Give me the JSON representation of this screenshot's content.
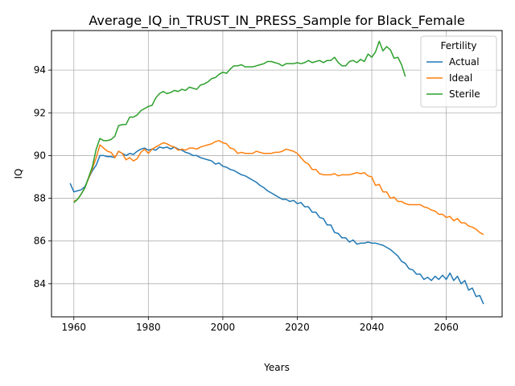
{
  "chart_data": {
    "type": "line",
    "title": "Average_IQ_in_TRUST_IN_PRESS_Sample for Black_Female",
    "xlabel": "Years",
    "ylabel": "IQ",
    "xlim": [
      1954,
      2075
    ],
    "ylim": [
      82.45,
      95.85
    ],
    "xticks": [
      1960,
      1980,
      2000,
      2020,
      2040,
      2060
    ],
    "yticks": [
      84,
      86,
      88,
      90,
      92,
      94
    ],
    "grid": true,
    "legend": {
      "title": "Fertility",
      "position": "top-right"
    },
    "series": [
      {
        "name": "Actual",
        "color": "#1f77b4",
        "points": [
          [
            1959,
            88.7
          ],
          [
            1960,
            88.3
          ],
          [
            1961,
            88.35
          ],
          [
            1962,
            88.4
          ],
          [
            1963,
            88.55
          ],
          [
            1964,
            88.95
          ],
          [
            1965,
            89.3
          ],
          [
            1966,
            89.55
          ],
          [
            1967,
            90.0
          ],
          [
            1968,
            90.0
          ],
          [
            1969,
            89.95
          ],
          [
            1970,
            89.95
          ],
          [
            1971,
            89.9
          ],
          [
            1972,
            90.2
          ],
          [
            1973,
            90.1
          ],
          [
            1974,
            90.0
          ],
          [
            1975,
            90.1
          ],
          [
            1976,
            90.05
          ],
          [
            1977,
            90.2
          ],
          [
            1978,
            90.3
          ],
          [
            1979,
            90.35
          ],
          [
            1980,
            90.25
          ],
          [
            1981,
            90.3
          ],
          [
            1982,
            90.25
          ],
          [
            1983,
            90.4
          ],
          [
            1984,
            90.35
          ],
          [
            1985,
            90.4
          ],
          [
            1986,
            90.3
          ],
          [
            1987,
            90.4
          ],
          [
            1988,
            90.3
          ],
          [
            1989,
            90.25
          ],
          [
            1990,
            90.15
          ],
          [
            1991,
            90.1
          ],
          [
            1992,
            90.0
          ],
          [
            1993,
            90.0
          ],
          [
            1994,
            89.9
          ],
          [
            1995,
            89.85
          ],
          [
            1996,
            89.8
          ],
          [
            1997,
            89.75
          ],
          [
            1998,
            89.6
          ],
          [
            1999,
            89.65
          ],
          [
            2000,
            89.5
          ],
          [
            2001,
            89.45
          ],
          [
            2002,
            89.35
          ],
          [
            2003,
            89.3
          ],
          [
            2004,
            89.2
          ],
          [
            2005,
            89.1
          ],
          [
            2006,
            89.05
          ],
          [
            2007,
            88.95
          ],
          [
            2008,
            88.85
          ],
          [
            2009,
            88.75
          ],
          [
            2010,
            88.6
          ],
          [
            2011,
            88.5
          ],
          [
            2012,
            88.35
          ],
          [
            2013,
            88.25
          ],
          [
            2014,
            88.15
          ],
          [
            2015,
            88.05
          ],
          [
            2016,
            87.95
          ],
          [
            2017,
            87.95
          ],
          [
            2018,
            87.85
          ],
          [
            2019,
            87.9
          ],
          [
            2020,
            87.75
          ],
          [
            2021,
            87.8
          ],
          [
            2022,
            87.6
          ],
          [
            2023,
            87.6
          ],
          [
            2024,
            87.35
          ],
          [
            2025,
            87.35
          ],
          [
            2026,
            87.1
          ],
          [
            2027,
            87.05
          ],
          [
            2028,
            86.75
          ],
          [
            2029,
            86.75
          ],
          [
            2030,
            86.4
          ],
          [
            2031,
            86.35
          ],
          [
            2032,
            86.15
          ],
          [
            2033,
            86.15
          ],
          [
            2034,
            85.95
          ],
          [
            2035,
            86.05
          ],
          [
            2036,
            85.85
          ],
          [
            2037,
            85.9
          ],
          [
            2038,
            85.9
          ],
          [
            2039,
            85.95
          ],
          [
            2040,
            85.9
          ],
          [
            2041,
            85.9
          ],
          [
            2042,
            85.85
          ],
          [
            2043,
            85.8
          ],
          [
            2044,
            85.7
          ],
          [
            2045,
            85.6
          ],
          [
            2046,
            85.45
          ],
          [
            2047,
            85.3
          ],
          [
            2048,
            85.05
          ],
          [
            2049,
            84.95
          ],
          [
            2050,
            84.7
          ],
          [
            2051,
            84.65
          ],
          [
            2052,
            84.45
          ],
          [
            2053,
            84.45
          ],
          [
            2054,
            84.2
          ],
          [
            2055,
            84.3
          ],
          [
            2056,
            84.15
          ],
          [
            2057,
            84.35
          ],
          [
            2058,
            84.2
          ],
          [
            2059,
            84.4
          ],
          [
            2060,
            84.2
          ],
          [
            2061,
            84.5
          ],
          [
            2062,
            84.15
          ],
          [
            2063,
            84.35
          ],
          [
            2064,
            84.0
          ],
          [
            2065,
            84.15
          ],
          [
            2066,
            83.7
          ],
          [
            2067,
            83.8
          ],
          [
            2068,
            83.4
          ],
          [
            2069,
            83.45
          ],
          [
            2070,
            83.05
          ]
        ]
      },
      {
        "name": "Ideal",
        "color": "#ff7f0e",
        "points": [
          [
            1960,
            87.85
          ],
          [
            1961,
            87.95
          ],
          [
            1962,
            88.2
          ],
          [
            1963,
            88.5
          ],
          [
            1964,
            88.95
          ],
          [
            1965,
            89.4
          ],
          [
            1966,
            89.9
          ],
          [
            1967,
            90.5
          ],
          [
            1968,
            90.35
          ],
          [
            1969,
            90.2
          ],
          [
            1970,
            90.15
          ],
          [
            1971,
            89.9
          ],
          [
            1972,
            90.2
          ],
          [
            1973,
            90.1
          ],
          [
            1974,
            89.8
          ],
          [
            1975,
            89.9
          ],
          [
            1976,
            89.75
          ],
          [
            1977,
            89.85
          ],
          [
            1978,
            90.15
          ],
          [
            1979,
            90.3
          ],
          [
            1980,
            90.1
          ],
          [
            1981,
            90.3
          ],
          [
            1982,
            90.4
          ],
          [
            1983,
            90.5
          ],
          [
            1984,
            90.6
          ],
          [
            1985,
            90.55
          ],
          [
            1986,
            90.45
          ],
          [
            1987,
            90.4
          ],
          [
            1988,
            90.25
          ],
          [
            1989,
            90.3
          ],
          [
            1990,
            90.25
          ],
          [
            1991,
            90.35
          ],
          [
            1992,
            90.35
          ],
          [
            1993,
            90.3
          ],
          [
            1994,
            90.4
          ],
          [
            1995,
            90.45
          ],
          [
            1996,
            90.5
          ],
          [
            1997,
            90.55
          ],
          [
            1998,
            90.65
          ],
          [
            1999,
            90.7
          ],
          [
            2000,
            90.6
          ],
          [
            2001,
            90.55
          ],
          [
            2002,
            90.35
          ],
          [
            2003,
            90.3
          ],
          [
            2004,
            90.1
          ],
          [
            2005,
            90.15
          ],
          [
            2006,
            90.1
          ],
          [
            2007,
            90.1
          ],
          [
            2008,
            90.1
          ],
          [
            2009,
            90.2
          ],
          [
            2010,
            90.15
          ],
          [
            2011,
            90.1
          ],
          [
            2012,
            90.1
          ],
          [
            2013,
            90.1
          ],
          [
            2014,
            90.15
          ],
          [
            2015,
            90.15
          ],
          [
            2016,
            90.2
          ],
          [
            2017,
            90.3
          ],
          [
            2018,
            90.25
          ],
          [
            2019,
            90.2
          ],
          [
            2020,
            90.1
          ],
          [
            2021,
            89.9
          ],
          [
            2022,
            89.7
          ],
          [
            2023,
            89.6
          ],
          [
            2024,
            89.35
          ],
          [
            2025,
            89.35
          ],
          [
            2026,
            89.15
          ],
          [
            2027,
            89.1
          ],
          [
            2028,
            89.1
          ],
          [
            2029,
            89.1
          ],
          [
            2030,
            89.15
          ],
          [
            2031,
            89.05
          ],
          [
            2032,
            89.1
          ],
          [
            2033,
            89.1
          ],
          [
            2034,
            89.1
          ],
          [
            2035,
            89.15
          ],
          [
            2036,
            89.2
          ],
          [
            2037,
            89.15
          ],
          [
            2038,
            89.2
          ],
          [
            2039,
            89.05
          ],
          [
            2040,
            89.0
          ],
          [
            2041,
            88.6
          ],
          [
            2042,
            88.65
          ],
          [
            2043,
            88.3
          ],
          [
            2044,
            88.3
          ],
          [
            2045,
            88.0
          ],
          [
            2046,
            88.05
          ],
          [
            2047,
            87.85
          ],
          [
            2048,
            87.85
          ],
          [
            2049,
            87.75
          ],
          [
            2050,
            87.7
          ],
          [
            2051,
            87.7
          ],
          [
            2052,
            87.7
          ],
          [
            2053,
            87.7
          ],
          [
            2054,
            87.6
          ],
          [
            2055,
            87.55
          ],
          [
            2056,
            87.45
          ],
          [
            2057,
            87.4
          ],
          [
            2058,
            87.25
          ],
          [
            2059,
            87.25
          ],
          [
            2060,
            87.1
          ],
          [
            2061,
            87.15
          ],
          [
            2062,
            86.95
          ],
          [
            2063,
            87.05
          ],
          [
            2064,
            86.85
          ],
          [
            2065,
            86.85
          ],
          [
            2066,
            86.7
          ],
          [
            2067,
            86.65
          ],
          [
            2068,
            86.55
          ],
          [
            2069,
            86.4
          ],
          [
            2070,
            86.3
          ]
        ]
      },
      {
        "name": "Sterile",
        "color": "#2ca02c",
        "points": [
          [
            1960,
            87.8
          ],
          [
            1961,
            87.95
          ],
          [
            1962,
            88.2
          ],
          [
            1963,
            88.5
          ],
          [
            1964,
            89.0
          ],
          [
            1965,
            89.5
          ],
          [
            1966,
            90.3
          ],
          [
            1967,
            90.8
          ],
          [
            1968,
            90.7
          ],
          [
            1969,
            90.7
          ],
          [
            1970,
            90.75
          ],
          [
            1971,
            90.9
          ],
          [
            1972,
            91.4
          ],
          [
            1973,
            91.45
          ],
          [
            1974,
            91.45
          ],
          [
            1975,
            91.8
          ],
          [
            1976,
            91.8
          ],
          [
            1977,
            91.9
          ],
          [
            1978,
            92.1
          ],
          [
            1979,
            92.2
          ],
          [
            1980,
            92.3
          ],
          [
            1981,
            92.35
          ],
          [
            1982,
            92.7
          ],
          [
            1983,
            92.9
          ],
          [
            1984,
            93.0
          ],
          [
            1985,
            92.9
          ],
          [
            1986,
            92.95
          ],
          [
            1987,
            93.05
          ],
          [
            1988,
            93.0
          ],
          [
            1989,
            93.1
          ],
          [
            1990,
            93.05
          ],
          [
            1991,
            93.2
          ],
          [
            1992,
            93.15
          ],
          [
            1993,
            93.1
          ],
          [
            1994,
            93.3
          ],
          [
            1995,
            93.35
          ],
          [
            1996,
            93.45
          ],
          [
            1997,
            93.6
          ],
          [
            1998,
            93.65
          ],
          [
            1999,
            93.8
          ],
          [
            2000,
            93.9
          ],
          [
            2001,
            93.85
          ],
          [
            2002,
            94.05
          ],
          [
            2003,
            94.2
          ],
          [
            2004,
            94.2
          ],
          [
            2005,
            94.25
          ],
          [
            2006,
            94.15
          ],
          [
            2007,
            94.15
          ],
          [
            2008,
            94.15
          ],
          [
            2009,
            94.2
          ],
          [
            2010,
            94.25
          ],
          [
            2011,
            94.3
          ],
          [
            2012,
            94.4
          ],
          [
            2013,
            94.4
          ],
          [
            2014,
            94.35
          ],
          [
            2015,
            94.3
          ],
          [
            2016,
            94.2
          ],
          [
            2017,
            94.3
          ],
          [
            2018,
            94.3
          ],
          [
            2019,
            94.3
          ],
          [
            2020,
            94.35
          ],
          [
            2021,
            94.3
          ],
          [
            2022,
            94.35
          ],
          [
            2023,
            94.45
          ],
          [
            2024,
            94.35
          ],
          [
            2025,
            94.4
          ],
          [
            2026,
            94.45
          ],
          [
            2027,
            94.35
          ],
          [
            2028,
            94.45
          ],
          [
            2029,
            94.45
          ],
          [
            2030,
            94.6
          ],
          [
            2031,
            94.35
          ],
          [
            2032,
            94.2
          ],
          [
            2033,
            94.2
          ],
          [
            2034,
            94.4
          ],
          [
            2035,
            94.45
          ],
          [
            2036,
            94.35
          ],
          [
            2037,
            94.5
          ],
          [
            2038,
            94.4
          ],
          [
            2039,
            94.75
          ],
          [
            2040,
            94.6
          ],
          [
            2041,
            94.85
          ],
          [
            2042,
            95.35
          ],
          [
            2043,
            94.9
          ],
          [
            2044,
            95.1
          ],
          [
            2045,
            94.95
          ],
          [
            2046,
            94.55
          ],
          [
            2047,
            94.6
          ],
          [
            2048,
            94.25
          ],
          [
            2049,
            93.7
          ]
        ]
      }
    ]
  }
}
